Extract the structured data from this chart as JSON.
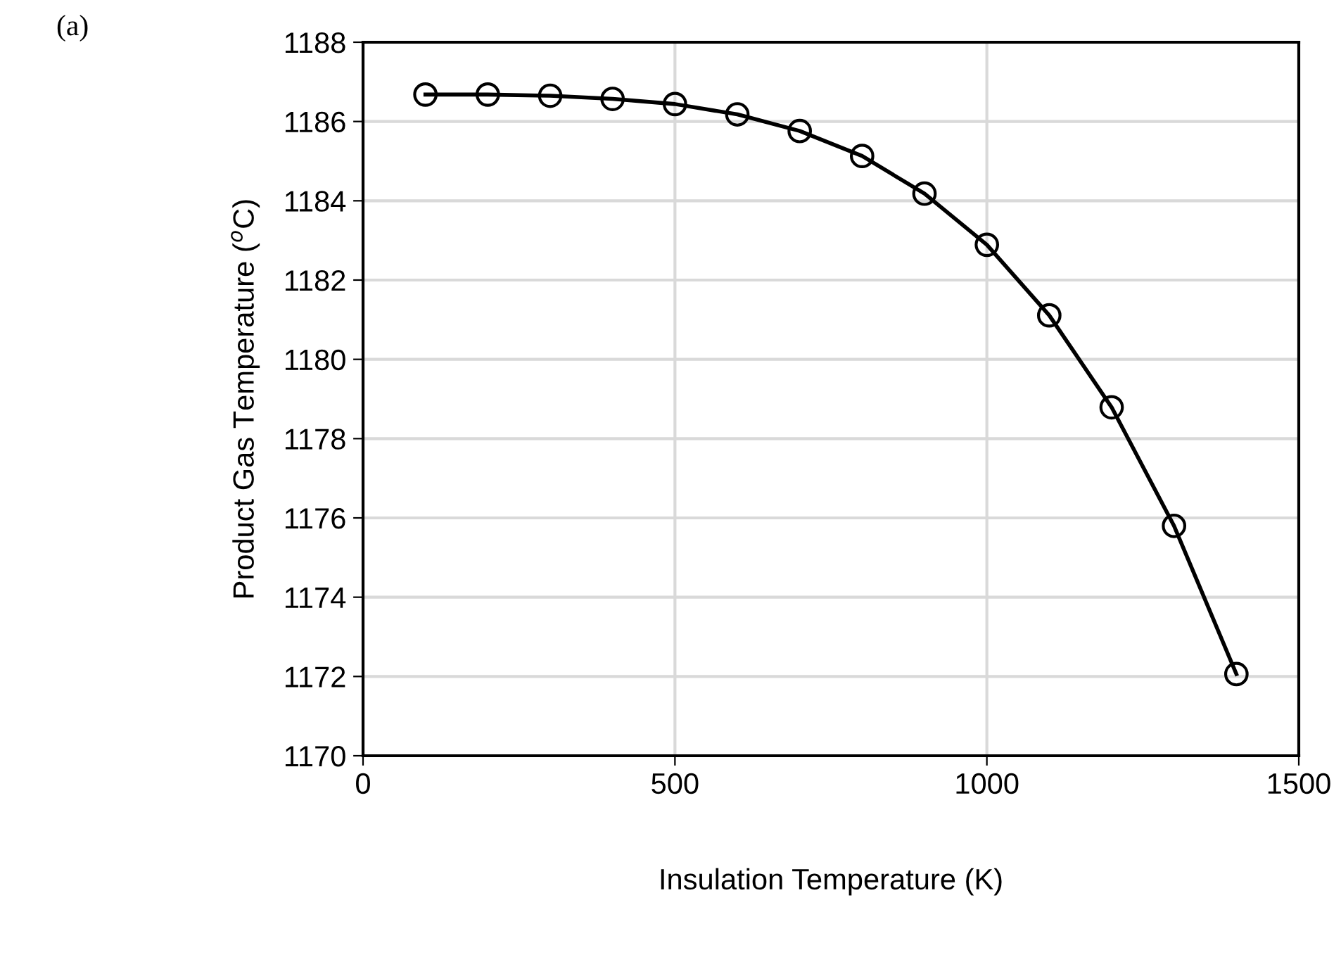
{
  "chart_data": {
    "type": "line",
    "xlabel": "Insulation Temperature (K)",
    "ylabel": "Product Gas Temperature ($^{o}$C)",
    "annotations": [
      "(a)"
    ],
    "x": [
      100,
      200,
      300,
      400,
      500,
      600,
      700,
      800,
      900,
      1000,
      1100,
      1200,
      1300,
      1400
    ],
    "series": [
      {
        "color": "#000000",
        "values": [
          1186.68,
          1186.68,
          1186.65,
          1186.57,
          1186.44,
          1186.18,
          1185.76,
          1185.13,
          1184.18,
          1182.89,
          1181.11,
          1178.79,
          1175.8,
          1172.06
        ]
      }
    ],
    "xlim": [
      0,
      1500
    ],
    "xticks": [
      0,
      500,
      1000,
      1500
    ],
    "ylim": [
      1170,
      1188
    ],
    "yticks": [
      1170,
      1172,
      1174,
      1176,
      1178,
      1180,
      1182,
      1184,
      1186,
      1188
    ],
    "grid": true,
    "marker": "circle",
    "line_style": "solid"
  }
}
